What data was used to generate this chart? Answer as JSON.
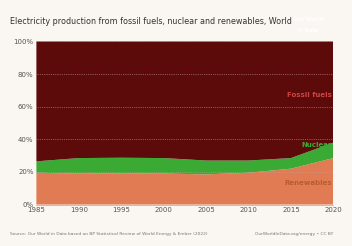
{
  "title": "Electricity production from fossil fuels, nuclear and renewables, World",
  "years_key": [
    1985,
    1990,
    1995,
    2000,
    2005,
    2010,
    2015,
    2020
  ],
  "renewables_key": [
    19.5,
    19.0,
    19.2,
    19.0,
    18.5,
    19.5,
    22.0,
    28.5
  ],
  "nuclear_key": [
    7.0,
    9.5,
    9.5,
    9.5,
    8.5,
    7.5,
    6.5,
    9.5
  ],
  "color_renewables": "#e07b54",
  "color_nuclear": "#3aaa35",
  "color_fossil": "#5c0a0a",
  "color_background": "#faf7f2",
  "color_grid": "#c8a0a0",
  "ylabel_ticks": [
    "0%",
    "20%",
    "40%",
    "60%",
    "80%",
    "100%"
  ],
  "ytick_vals": [
    0,
    20,
    40,
    60,
    80,
    100
  ],
  "source_text": "Source: Our World in Data based on BP Statistical Review of World Energy & Ember (2022)",
  "logo_text": "OurWorldInData.org/energy • CC BY",
  "label_fossil": "Fossil fuels",
  "label_nuclear": "Nuclear",
  "label_renewables": "Renewables",
  "xticks": [
    1985,
    1990,
    1995,
    2000,
    2005,
    2010,
    2015,
    2020
  ],
  "xtick_labels": [
    "1985",
    "1990",
    "1995",
    "2000",
    "2005",
    "2010",
    "2015",
    "2020"
  ]
}
